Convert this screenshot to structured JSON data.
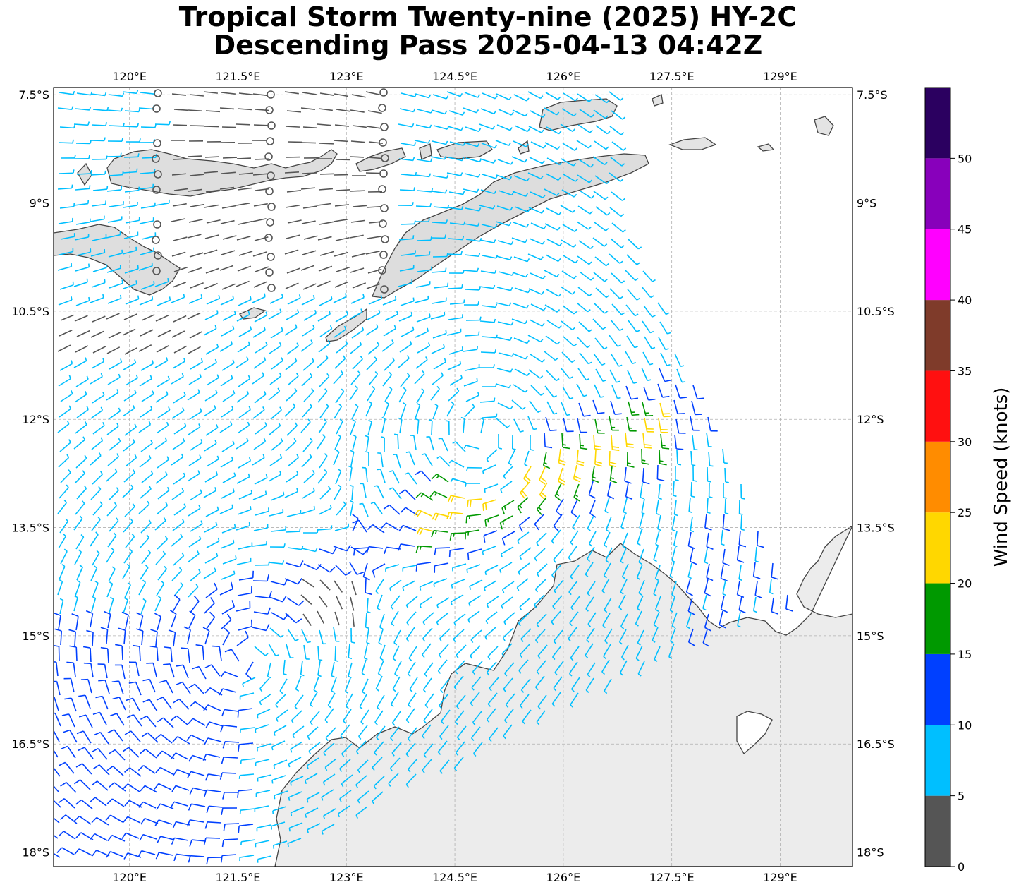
{
  "title": {
    "line1": "Tropical Storm Twenty-nine (2025) HY-2C",
    "line2": "Descending Pass 2025-04-13 04:42Z"
  },
  "map": {
    "lon_range": [
      118.95,
      130.0
    ],
    "lat_range": [
      -18.2,
      -7.4
    ],
    "lon_ticks": [
      120.0,
      121.5,
      123.0,
      124.5,
      126.0,
      127.5,
      129.0
    ],
    "lon_tick_labels": [
      "120°E",
      "121.5°E",
      "123°E",
      "124.5°E",
      "126°E",
      "127.5°E",
      "129°E"
    ],
    "lat_ticks": [
      -7.5,
      -9,
      -10.5,
      -12,
      -13.5,
      -15,
      -16.5,
      -18
    ],
    "lat_tick_labels": [
      "7.5°S",
      "9°S",
      "10.5°S",
      "12°S",
      "13.5°S",
      "15°S",
      "16.5°S",
      "18°S"
    ],
    "grid": true,
    "storm_center_approx": {
      "lon": 124.9,
      "lat": -12.2
    },
    "land_color": "#e6e6e6",
    "coast_color": "#444444",
    "grid_color": "#b0b0b0"
  },
  "colorbar": {
    "label": "Wind Speed (knots)",
    "tick_values": [
      0,
      5,
      10,
      15,
      20,
      25,
      30,
      35,
      40,
      45,
      50
    ],
    "tick_labels": [
      "0",
      "5",
      "10",
      "15",
      "20",
      "25",
      "30",
      "35",
      "40",
      "45",
      "50"
    ],
    "max": 55,
    "bins": [
      {
        "from": 0,
        "to": 5,
        "color": "#555555"
      },
      {
        "from": 5,
        "to": 10,
        "color": "#00bfff"
      },
      {
        "from": 10,
        "to": 15,
        "color": "#0040ff"
      },
      {
        "from": 15,
        "to": 20,
        "color": "#009900"
      },
      {
        "from": 20,
        "to": 25,
        "color": "#ffd700"
      },
      {
        "from": 25,
        "to": 30,
        "color": "#ff8c00"
      },
      {
        "from": 30,
        "to": 35,
        "color": "#ff1010"
      },
      {
        "from": 35,
        "to": 40,
        "color": "#7f3b2a"
      },
      {
        "from": 40,
        "to": 45,
        "color": "#ff00ff"
      },
      {
        "from": 45,
        "to": 50,
        "color": "#8800bb"
      },
      {
        "from": 50,
        "to": 55,
        "color": "#2b0060"
      }
    ]
  }
}
